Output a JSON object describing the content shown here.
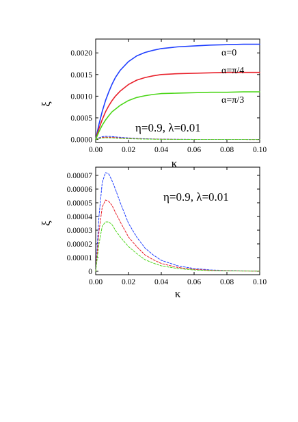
{
  "chart_data": [
    {
      "type": "line",
      "title": "",
      "xlabel": "κ",
      "ylabel": "ξ",
      "xlim": [
        0,
        0.1
      ],
      "ylim": [
        -7e-05,
        0.00232
      ],
      "grid": false,
      "x_ticks": [
        0.0,
        0.02,
        0.04,
        0.06,
        0.08,
        0.1
      ],
      "x_tick_labels": [
        "0.00",
        "0.02",
        "0.04",
        "0.06",
        "0.08",
        "0.10"
      ],
      "y_ticks": [
        0.0,
        0.0005,
        0.001,
        0.0015,
        0.002
      ],
      "y_tick_labels": [
        "0.0000",
        "0.0005",
        "0.0010",
        "0.0015",
        "0.0020"
      ],
      "annotation": "η=0.9, λ=0.01",
      "x": [
        0,
        0.002,
        0.004,
        0.006,
        0.008,
        0.01,
        0.012,
        0.015,
        0.02,
        0.025,
        0.03,
        0.035,
        0.04,
        0.05,
        0.06,
        0.07,
        0.08,
        0.09,
        0.1
      ],
      "series": [
        {
          "name": "α=0",
          "color": "#1f3fff",
          "style": "solid",
          "values": [
            0,
            0.00035,
            0.00065,
            0.0009,
            0.0011,
            0.00128,
            0.00143,
            0.0016,
            0.0018,
            0.00193,
            0.00201,
            0.00206,
            0.0021,
            0.00214,
            0.00216,
            0.00218,
            0.00219,
            0.0022,
            0.0022
          ]
        },
        {
          "name": "α=π/4",
          "color": "#e8202a",
          "style": "solid",
          "values": [
            0,
            0.00025,
            0.00046,
            0.00064,
            0.00078,
            0.0009,
            0.001,
            0.00112,
            0.00127,
            0.00137,
            0.00143,
            0.00147,
            0.0015,
            0.00152,
            0.00153,
            0.00154,
            0.00155,
            0.00155,
            0.00155
          ]
        },
        {
          "name": "α=π/3",
          "color": "#4cd619",
          "style": "solid",
          "values": [
            0,
            0.00018,
            0.00033,
            0.00045,
            0.00055,
            0.00064,
            0.0007,
            0.00079,
            0.0009,
            0.00097,
            0.00101,
            0.00104,
            0.00106,
            0.00107,
            0.00108,
            0.00109,
            0.00109,
            0.0011,
            0.0011
          ]
        },
        {
          "name": "",
          "color": "#1f3fff",
          "style": "dashed",
          "values": [
            0,
            4e-05,
            6.5e-05,
            7.2e-05,
            7.1e-05,
            6.6e-05,
            6e-05,
            5e-05,
            3.5e-05,
            2.5e-05,
            1.7e-05,
            1.2e-05,
            8e-06,
            4e-06,
            2e-06,
            1e-06,
            5e-07,
            3e-07,
            2e-07
          ]
        },
        {
          "name": "",
          "color": "#e8202a",
          "style": "dashed",
          "values": [
            0,
            2.9e-05,
            4.7e-05,
            5.2e-05,
            5.1e-05,
            4.8e-05,
            4.3e-05,
            3.6e-05,
            2.5e-05,
            1.8e-05,
            1.2e-05,
            8.5e-06,
            5.7e-06,
            2.8e-06,
            1.4e-06,
            7e-07,
            4e-07,
            2e-07,
            1e-07
          ]
        },
        {
          "name": "",
          "color": "#4cd619",
          "style": "dashed",
          "values": [
            0,
            2e-05,
            3.3e-05,
            3.6e-05,
            3.6e-05,
            3.4e-05,
            3e-05,
            2.5e-05,
            1.8e-05,
            1.3e-05,
            8.5e-06,
            6e-06,
            4e-06,
            2e-06,
            1e-06,
            5e-07,
            3e-07,
            2e-07,
            1e-07
          ]
        }
      ]
    },
    {
      "type": "line",
      "title": "",
      "xlabel": "κ",
      "ylabel": "ξ",
      "xlim": [
        0,
        0.1
      ],
      "ylim": [
        -2.5e-06,
        7.6e-05
      ],
      "grid": false,
      "x_ticks": [
        0.0,
        0.02,
        0.04,
        0.06,
        0.08,
        0.1
      ],
      "x_tick_labels": [
        "0.00",
        "0.02",
        "0.04",
        "0.06",
        "0.08",
        "0.10"
      ],
      "y_ticks": [
        0,
        1e-05,
        2e-05,
        3e-05,
        4e-05,
        5e-05,
        6e-05,
        7e-05
      ],
      "y_tick_labels": [
        "0",
        "0.00001",
        "0.00002",
        "0.00003",
        "0.00004",
        "0.00005",
        "0.00006",
        "0.00007"
      ],
      "annotation": "η=0.9, λ=0.01",
      "x": [
        0,
        0.002,
        0.004,
        0.006,
        0.008,
        0.01,
        0.012,
        0.015,
        0.02,
        0.025,
        0.03,
        0.035,
        0.04,
        0.05,
        0.06,
        0.07,
        0.08,
        0.09,
        0.1
      ],
      "series": [
        {
          "name": "",
          "color": "#1f3fff",
          "style": "dashed",
          "values": [
            0,
            4e-05,
            6.5e-05,
            7.2e-05,
            7.1e-05,
            6.6e-05,
            6e-05,
            5e-05,
            3.5e-05,
            2.5e-05,
            1.7e-05,
            1.2e-05,
            8e-06,
            4e-06,
            2e-06,
            1e-06,
            5e-07,
            3e-07,
            2e-07
          ]
        },
        {
          "name": "",
          "color": "#e8202a",
          "style": "dashed",
          "values": [
            0,
            2.9e-05,
            4.7e-05,
            5.2e-05,
            5.1e-05,
            4.8e-05,
            4.3e-05,
            3.6e-05,
            2.5e-05,
            1.8e-05,
            1.2e-05,
            8.5e-06,
            5.7e-06,
            2.8e-06,
            1.4e-06,
            7e-07,
            4e-07,
            2e-07,
            1e-07
          ]
        },
        {
          "name": "",
          "color": "#4cd619",
          "style": "dashed",
          "values": [
            0,
            2e-05,
            3.3e-05,
            3.6e-05,
            3.6e-05,
            3.4e-05,
            3e-05,
            2.5e-05,
            1.8e-05,
            1.3e-05,
            8.5e-06,
            6e-06,
            4e-06,
            2e-06,
            1e-06,
            5e-07,
            3e-07,
            2e-07,
            1e-07
          ]
        }
      ]
    }
  ]
}
